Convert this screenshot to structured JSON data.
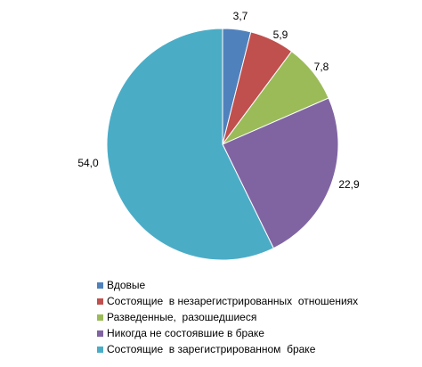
{
  "chart_data": {
    "type": "pie",
    "title": "",
    "start_angle_deg": 0,
    "direction": "clockwise",
    "legend_position": "bottom",
    "slices": [
      {
        "label": "Вдовые",
        "value": 3.7,
        "display": "3,7",
        "color": "#4F81BD"
      },
      {
        "label": "Состоящие  в незарегистрированных  отношениях",
        "value": 5.9,
        "display": "5,9",
        "color": "#C0504D"
      },
      {
        "label": "Разведенные,  разошедшиеся",
        "value": 7.8,
        "display": "7,8",
        "color": "#9BBB59"
      },
      {
        "label": "Никогда не состоявшие в браке",
        "value": 22.9,
        "display": "22,9",
        "color": "#8064A2"
      },
      {
        "label": "Состоящие  в зарегистрированном  браке",
        "value": 54.0,
        "display": "54,0",
        "color": "#4BACC6"
      }
    ]
  }
}
